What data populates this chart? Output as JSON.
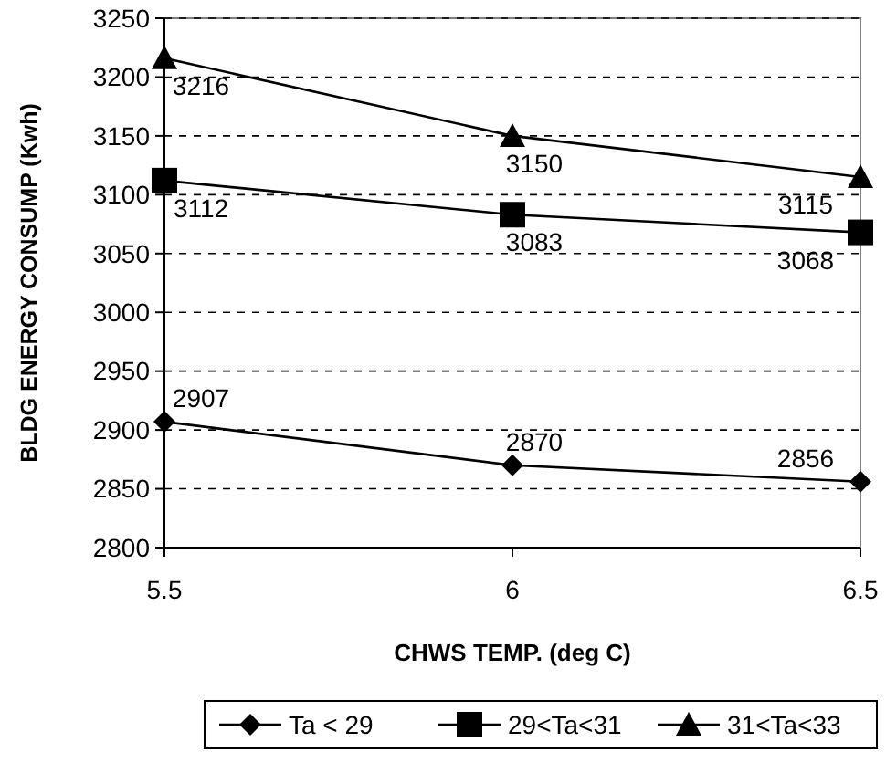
{
  "chart_data": {
    "type": "line",
    "xlabel": "CHWS TEMP. (deg C)",
    "ylabel": "BLDG ENERGY CONSUMP (Kwh)",
    "x": [
      5.5,
      6,
      6.5
    ],
    "xlim": [
      5.5,
      6.5
    ],
    "xticks": [
      5.5,
      6,
      6.5
    ],
    "ylim": [
      2800,
      3250
    ],
    "yticks": [
      2800,
      2850,
      2900,
      2950,
      3000,
      3050,
      3100,
      3150,
      3200,
      3250
    ],
    "grid": "y",
    "legend": "bottom",
    "data_labels": true,
    "series": [
      {
        "name": "Ta < 29",
        "color": "#000000",
        "marker": "diamond",
        "values": [
          2907,
          2870,
          2856
        ]
      },
      {
        "name": "29<Ta<31",
        "color": "#000000",
        "marker": "square",
        "values": [
          3112,
          3083,
          3068
        ]
      },
      {
        "name": "31<Ta<33",
        "color": "#000000",
        "marker": "triangle",
        "values": [
          3216,
          3150,
          3115
        ]
      }
    ]
  }
}
